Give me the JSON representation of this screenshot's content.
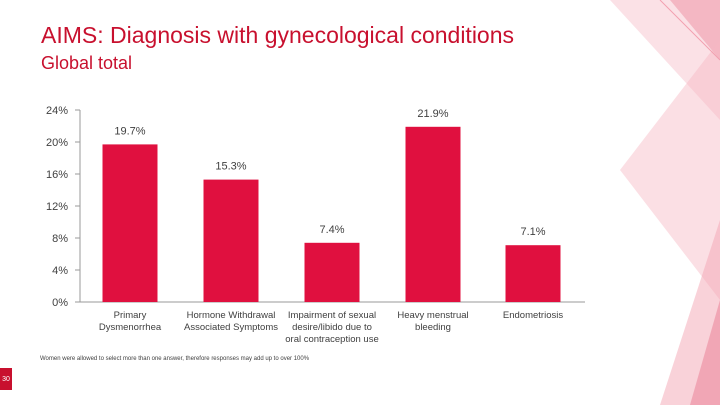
{
  "header": {
    "title": "AIMS: Diagnosis with gynecological conditions",
    "subtitle": "Global total"
  },
  "chart_data": {
    "type": "bar",
    "categories": [
      [
        "Primary",
        "Dysmenorrhea"
      ],
      [
        "Hormone Withdrawal",
        "Associated Symptoms"
      ],
      [
        "Impairment of sexual",
        "desire/libido due to",
        "oral contraception use"
      ],
      [
        "Heavy menstrual",
        "bleeding"
      ],
      [
        "Endometriosis"
      ]
    ],
    "values": [
      19.7,
      15.3,
      7.4,
      21.9,
      7.1
    ],
    "data_labels": [
      "19.7%",
      "15.3%",
      "7.4%",
      "21.9%",
      "7.1%"
    ],
    "yticks": [
      "0%",
      "4%",
      "8%",
      "12%",
      "16%",
      "20%",
      "24%"
    ],
    "ylim": [
      0,
      24
    ],
    "bar_color": "#e0103f",
    "grid": false,
    "legend": "none"
  },
  "footer": {
    "note": "Women were allowed to select more than one answer, therefore responses may add up to over 100%",
    "page_number": "30"
  },
  "colors": {
    "accent": "#c8102e",
    "bar": "#e0103f",
    "decor_pink": "#f4a7b3"
  }
}
